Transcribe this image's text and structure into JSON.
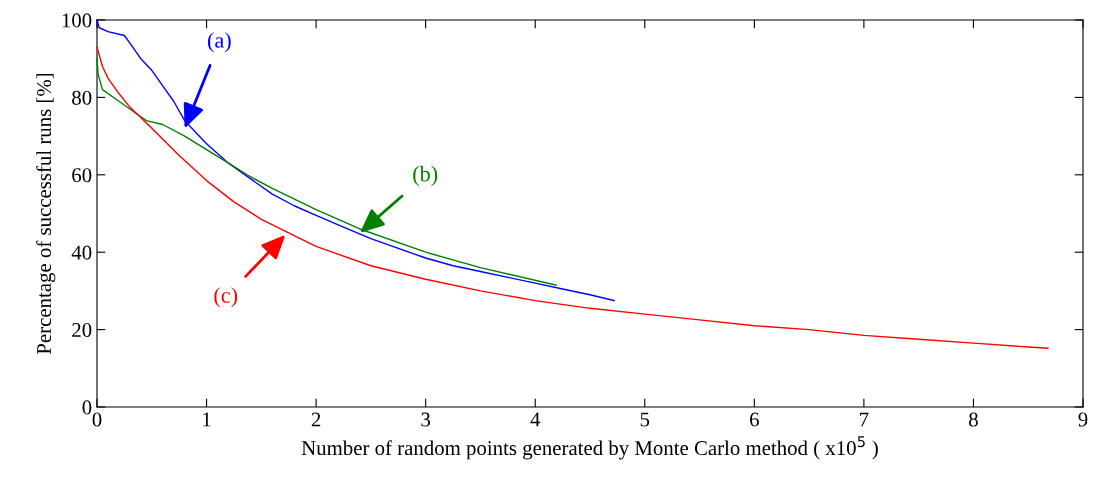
{
  "chart_data": {
    "type": "line",
    "xlabel": "Number of random points generated by Monte Carlo method ( x10$^{5}$ )",
    "ylabel": "Percentage of successful runs [%]",
    "xlim": [
      0,
      9
    ],
    "xticks": [
      0,
      1,
      2,
      3,
      4,
      5,
      6,
      7,
      8,
      9
    ],
    "ylim": [
      0,
      100
    ],
    "yticks": [
      0,
      20,
      40,
      60,
      80,
      100
    ],
    "grid": false,
    "legend": false,
    "series": [
      {
        "color": "#0000ff",
        "x": [
          0,
          0.02,
          0.1,
          0.25,
          0.3,
          0.4,
          0.5,
          0.6,
          0.7,
          0.8,
          0.9,
          1.0,
          1.2,
          1.4,
          1.6,
          1.8,
          2.0,
          2.25,
          2.5,
          2.75,
          3.0,
          3.25,
          3.5,
          3.75,
          4.0,
          4.25,
          4.5,
          4.72
        ],
        "values": [
          100,
          98,
          97,
          96,
          94,
          90,
          87,
          83,
          79,
          74,
          71,
          68,
          63,
          59,
          55,
          52,
          49.5,
          46.5,
          43.5,
          41,
          38.5,
          36.5,
          35,
          33.5,
          32,
          30.5,
          29,
          27.5
        ]
      },
      {
        "color": "#008000",
        "x": [
          0,
          0.01,
          0.05,
          0.2,
          0.3,
          0.45,
          0.6,
          0.8,
          1.0,
          1.2,
          1.4,
          1.6,
          2.0,
          2.4,
          3.0,
          3.5,
          4.19
        ],
        "values": [
          90,
          86,
          82,
          79,
          77,
          74,
          73,
          70,
          66.5,
          63,
          59.5,
          56.5,
          51,
          46,
          40,
          36,
          31.5
        ]
      },
      {
        "color": "#ff0000",
        "x": [
          0,
          0.05,
          0.1,
          0.2,
          0.3,
          0.5,
          0.75,
          1.0,
          1.25,
          1.5,
          1.75,
          2.0,
          2.5,
          3.0,
          3.5,
          4.0,
          4.5,
          5.0,
          5.5,
          6.0,
          6.5,
          7.0,
          7.5,
          8.0,
          8.5,
          8.68
        ],
        "values": [
          93,
          88,
          85,
          81,
          77.5,
          72,
          65,
          58.5,
          53,
          48.5,
          45,
          41.5,
          36.5,
          33,
          30,
          27.5,
          25.5,
          24,
          22.5,
          21,
          20,
          18.5,
          17.5,
          16.5,
          15.5,
          15.2
        ]
      }
    ],
    "annotations": [
      {
        "text": "(a)",
        "x": 0.8,
        "y": 72
      },
      {
        "text": "(b)",
        "x": 2.4,
        "y": 45
      },
      {
        "text": "(c)",
        "x": 1.72,
        "y": 44.5
      }
    ]
  }
}
